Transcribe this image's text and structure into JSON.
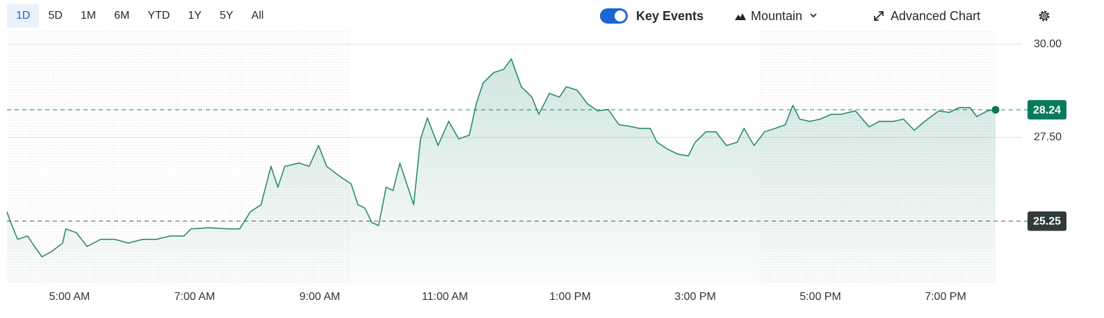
{
  "toolbar": {
    "ranges": [
      "1D",
      "5D",
      "1M",
      "6M",
      "YTD",
      "1Y",
      "5Y",
      "All"
    ],
    "key_events": "Key Events",
    "chart_style": "Mountain",
    "advanced_chart": "Advanced Chart"
  },
  "chart_data": {
    "type": "line",
    "color": "#2a8a72",
    "x": [
      4.0,
      4.06,
      4.17,
      4.33,
      4.44,
      4.56,
      4.72,
      4.89,
      4.94,
      5.11,
      5.28,
      5.5,
      5.72,
      5.94,
      6.17,
      6.39,
      6.61,
      6.83,
      6.94,
      7.22,
      7.56,
      7.72,
      7.89,
      8.06,
      8.22,
      8.33,
      8.44,
      8.67,
      8.83,
      8.98,
      9.11,
      9.33,
      9.5,
      9.61,
      9.72,
      9.83,
      9.94,
      10.06,
      10.17,
      10.28,
      10.39,
      10.5,
      10.61,
      10.72,
      10.89,
      11.06,
      11.22,
      11.39,
      11.5,
      11.61,
      11.78,
      11.94,
      12.06,
      12.22,
      12.39,
      12.5,
      12.67,
      12.83,
      12.94,
      13.11,
      13.28,
      13.44,
      13.61,
      13.78,
      13.94,
      14.11,
      14.28,
      14.39,
      14.56,
      14.72,
      14.89,
      15.0,
      15.17,
      15.33,
      15.5,
      15.67,
      15.78,
      15.94,
      16.11,
      16.28,
      16.44,
      16.56,
      16.67,
      16.83,
      17.0,
      17.17,
      17.33,
      17.56,
      17.78,
      17.94,
      18.17,
      18.33,
      18.5,
      18.67,
      18.89,
      19.06,
      19.22,
      19.39,
      19.5,
      19.67,
      19.8
    ],
    "values": [
      25.5,
      25.22,
      24.76,
      24.85,
      24.57,
      24.29,
      24.44,
      24.66,
      25.04,
      24.94,
      24.57,
      24.76,
      24.76,
      24.66,
      24.76,
      24.76,
      24.85,
      24.85,
      25.04,
      25.07,
      25.04,
      25.04,
      25.5,
      25.69,
      26.72,
      26.16,
      26.72,
      26.81,
      26.72,
      27.28,
      26.72,
      26.44,
      26.25,
      25.69,
      25.6,
      25.22,
      25.13,
      26.16,
      26.07,
      26.81,
      26.25,
      25.69,
      27.46,
      28.02,
      27.28,
      27.93,
      27.46,
      27.56,
      28.4,
      28.96,
      29.24,
      29.33,
      29.61,
      28.86,
      28.58,
      28.12,
      28.68,
      28.58,
      28.86,
      28.77,
      28.4,
      28.21,
      28.25,
      27.84,
      27.8,
      27.74,
      27.74,
      27.37,
      27.18,
      27.05,
      27.0,
      27.37,
      27.65,
      27.65,
      27.28,
      27.37,
      27.74,
      27.28,
      27.65,
      27.74,
      27.84,
      28.36,
      27.99,
      27.93,
      27.99,
      28.12,
      28.12,
      28.21,
      27.78,
      27.93,
      27.93,
      27.99,
      27.69,
      27.93,
      28.21,
      28.17,
      28.3,
      28.3,
      28.06,
      28.21,
      28.24
    ],
    "xlim": [
      4,
      20
    ],
    "xticks": [
      {
        "value": 5,
        "label": "5:00 AM"
      },
      {
        "value": 7,
        "label": "7:00 AM"
      },
      {
        "value": 9,
        "label": "9:00 AM"
      },
      {
        "value": 11,
        "label": "11:00 AM"
      },
      {
        "value": 13,
        "label": "1:00 PM"
      },
      {
        "value": 15,
        "label": "3:00 PM"
      },
      {
        "value": 17,
        "label": "5:00 PM"
      },
      {
        "value": 19,
        "label": "7:00 PM"
      }
    ],
    "ylim": [
      23.58,
      30.35
    ],
    "yticks": [
      {
        "value": 30,
        "label": "30.00"
      },
      {
        "value": 27.5,
        "label": "27.50"
      }
    ],
    "grid": true,
    "reference_lines": [
      {
        "value": 28.24,
        "color": "#0b7a5c"
      },
      {
        "value": 25.25,
        "color": "#2f3b3b"
      }
    ],
    "shaded_sessions": [
      [
        4,
        9.5
      ],
      [
        16,
        20
      ]
    ]
  }
}
